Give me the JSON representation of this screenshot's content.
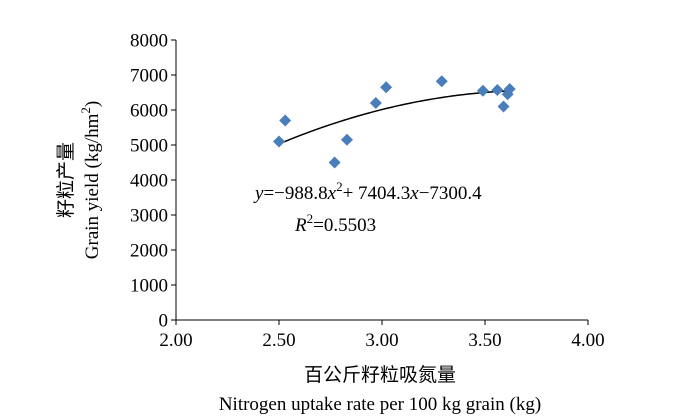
{
  "chart_data": {
    "type": "scatter",
    "xlabel_cn": "百公斤籽粒吸氮量",
    "xlabel_en": "Nitrogen uptake rate per 100 kg grain (kg)",
    "ylabel_cn": "籽粒产量",
    "ylabel_en": "Grain yield (kg/hm",
    "ylabel_en_sup": "2",
    "ylabel_en_end": ")",
    "xlim": [
      2.0,
      4.0
    ],
    "ylim": [
      0,
      8000
    ],
    "x_ticks": [
      "2.00",
      "2.50",
      "3.00",
      "3.50",
      "4.00"
    ],
    "y_ticks": [
      "0",
      "1000",
      "2000",
      "3000",
      "4000",
      "5000",
      "6000",
      "7000",
      "8000"
    ],
    "marker_color": "#4a7ebb",
    "points": [
      {
        "x": 2.5,
        "y": 5100
      },
      {
        "x": 2.53,
        "y": 5700
      },
      {
        "x": 2.77,
        "y": 4500
      },
      {
        "x": 2.83,
        "y": 5150
      },
      {
        "x": 2.97,
        "y": 6200
      },
      {
        "x": 3.02,
        "y": 6650
      },
      {
        "x": 3.29,
        "y": 6820
      },
      {
        "x": 3.49,
        "y": 6550
      },
      {
        "x": 3.56,
        "y": 6570
      },
      {
        "x": 3.59,
        "y": 6100
      },
      {
        "x": 3.61,
        "y": 6450
      },
      {
        "x": 3.62,
        "y": 6600
      }
    ],
    "trendline": {
      "a": -988.8,
      "b": 7404.3,
      "c": -7300.4,
      "x_start": 2.5,
      "x_end": 3.62
    },
    "equation": {
      "y": "y",
      "eq1": "=−988.8",
      "x1": "x",
      "sup": "2",
      "eq2": "+ 7404.3",
      "x2": "x",
      "eq3": "−7300.4"
    },
    "r2": {
      "r": "R",
      "sup": "2",
      "val": "=0.5503"
    }
  }
}
